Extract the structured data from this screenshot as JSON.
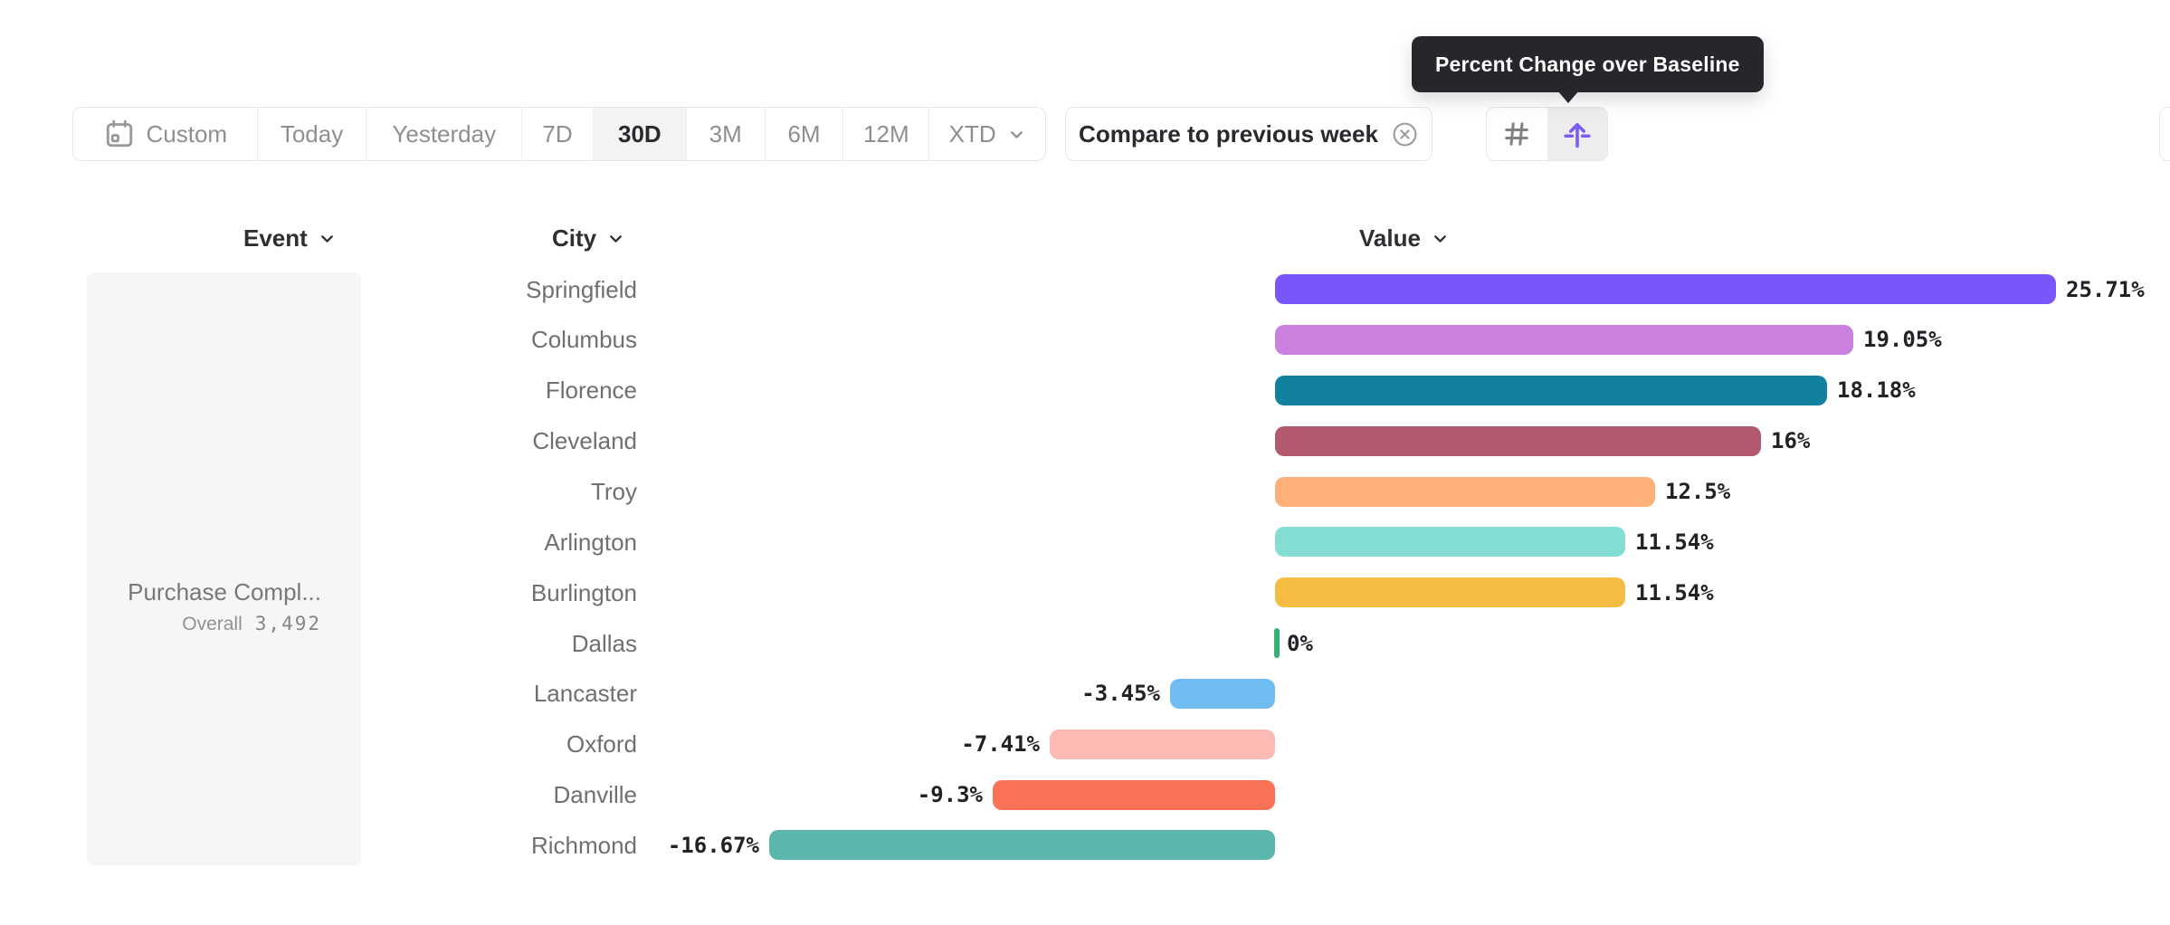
{
  "tooltip": {
    "text": "Percent Change over Baseline"
  },
  "toolbar": {
    "date_ranges": [
      {
        "label": "Custom",
        "icon": "calendar-icon",
        "selected": false
      },
      {
        "label": "Today",
        "selected": false
      },
      {
        "label": "Yesterday",
        "selected": false
      },
      {
        "label": "7D",
        "selected": false
      },
      {
        "label": "30D",
        "selected": true
      },
      {
        "label": "3M",
        "selected": false
      },
      {
        "label": "6M",
        "selected": false
      },
      {
        "label": "12M",
        "selected": false
      },
      {
        "label": "XTD",
        "has_chevron": true,
        "selected": false
      }
    ],
    "compare_chip": {
      "label": "Compare to previous week",
      "icon": "x-circle-icon"
    },
    "view_toggle": [
      {
        "icon": "hash-icon",
        "selected": false
      },
      {
        "icon": "baseline-arrow-icon",
        "selected": true,
        "tooltip": "Percent Change over Baseline"
      }
    ]
  },
  "chart": {
    "column_headers": [
      {
        "label": "Event"
      },
      {
        "label": "City"
      },
      {
        "label": "Value"
      }
    ],
    "event_panel": {
      "title": "Purchase Compl...",
      "overall_label": "Overall",
      "overall_value": "3,492"
    }
  },
  "chart_data": {
    "type": "bar",
    "orientation": "horizontal",
    "title": "Percent Change over Baseline by City",
    "series_name": "Value",
    "event": "Purchase Completed",
    "overall_total": "3,492",
    "categories": [
      "Springfield",
      "Columbus",
      "Florence",
      "Cleveland",
      "Troy",
      "Arlington",
      "Burlington",
      "Dallas",
      "Lancaster",
      "Oxford",
      "Danville",
      "Richmond"
    ],
    "values": [
      25.71,
      19.05,
      18.18,
      16,
      12.5,
      11.54,
      11.54,
      0,
      -3.45,
      -7.41,
      -9.3,
      -16.67
    ],
    "labels": [
      "25.71%",
      "19.05%",
      "18.18%",
      "16%",
      "12.5%",
      "11.54%",
      "11.54%",
      "0%",
      "-3.45%",
      "-7.41%",
      "-9.3%",
      "-16.67%"
    ],
    "colors": [
      "#7956FB",
      "#C980DE",
      "#12809F",
      "#B2596D",
      "#FFB07A",
      "#83DDD3",
      "#F5BC42",
      "#34B173",
      "#70BDF3",
      "#FBBAB3",
      "#FB7356",
      "#5BB6AB"
    ],
    "baseline": 0,
    "xlim": [
      -16.67,
      25.71
    ],
    "grid": false,
    "legend": false
  },
  "ui_colors": {
    "accent_purple": "#7B5BF5",
    "tooltip_bg": "#26262B",
    "border": "#E5E5E8",
    "selected_bg": "#F3F3F4",
    "text_dark": "#29292E",
    "text_gray": "#8E8E93",
    "bar_label": "#212126",
    "zero_bar_green": "#34B173"
  }
}
